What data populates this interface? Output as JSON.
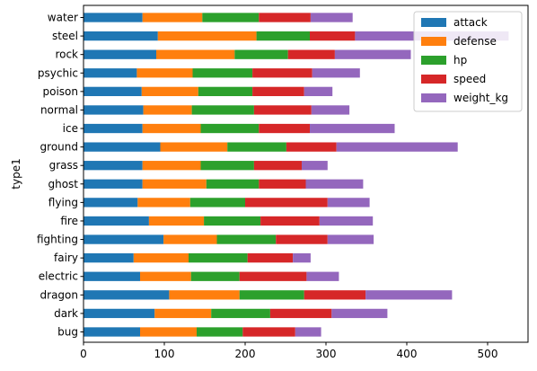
{
  "chart_data": {
    "type": "bar",
    "orientation": "horizontal",
    "stacked": true,
    "ylabel": "type1",
    "xlabel": "",
    "xlim": [
      0,
      550
    ],
    "xticks": [
      0,
      100,
      200,
      300,
      400,
      500
    ],
    "grid": false,
    "legend_position": "top-right",
    "categories": [
      "bug",
      "dark",
      "dragon",
      "electric",
      "fairy",
      "fighting",
      "fire",
      "flying",
      "ghost",
      "grass",
      "ground",
      "ice",
      "normal",
      "poison",
      "psychic",
      "rock",
      "steel",
      "water"
    ],
    "series": [
      {
        "name": "attack",
        "color": "#1f77b4",
        "values": [
          70,
          88,
          106,
          70,
          62,
          99,
          81,
          67,
          73,
          73,
          95,
          73,
          74,
          72,
          66,
          90,
          92,
          73
        ]
      },
      {
        "name": "defense",
        "color": "#ff7f0e",
        "values": [
          70,
          70,
          87,
          63,
          68,
          66,
          68,
          65,
          79,
          72,
          83,
          72,
          60,
          70,
          69,
          97,
          122,
          74
        ]
      },
      {
        "name": "hp",
        "color": "#2ca02c",
        "values": [
          57,
          73,
          80,
          60,
          73,
          73,
          70,
          68,
          65,
          66,
          73,
          72,
          77,
          67,
          74,
          66,
          66,
          70
        ]
      },
      {
        "name": "speed",
        "color": "#d62728",
        "values": [
          65,
          76,
          76,
          83,
          56,
          64,
          73,
          102,
          58,
          59,
          62,
          63,
          71,
          64,
          74,
          58,
          56,
          64
        ]
      },
      {
        "name": "weight_kg",
        "color": "#9467bd",
        "values": [
          32,
          69,
          107,
          40,
          22,
          57,
          66,
          52,
          71,
          32,
          150,
          105,
          47,
          35,
          59,
          94,
          190,
          52
        ]
      }
    ]
  }
}
